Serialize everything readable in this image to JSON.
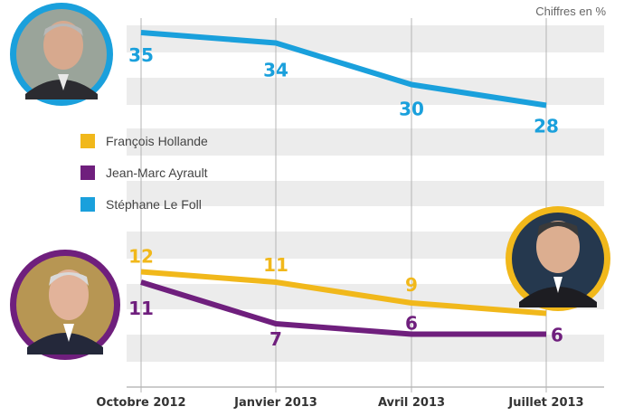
{
  "note": "Chiffres en %",
  "chart_data": {
    "type": "line",
    "categories": [
      "Octobre 2012",
      "Janvier 2013",
      "Avril 2013",
      "Juillet 2013"
    ],
    "ylim": [
      0,
      37
    ],
    "grid": "horizontal bands",
    "legend_position": "middle-left",
    "series": [
      {
        "name": "François Hollande",
        "color": "#f1b81b",
        "values": [
          12,
          11,
          9,
          8
        ]
      },
      {
        "name": "Jean-Marc Ayrault",
        "color": "#6f1f7d",
        "values": [
          11,
          7,
          6,
          6
        ]
      },
      {
        "name": "Stéphane Le Foll",
        "color": "#1aa0dc",
        "values": [
          35,
          34,
          30,
          28
        ]
      }
    ]
  }
}
